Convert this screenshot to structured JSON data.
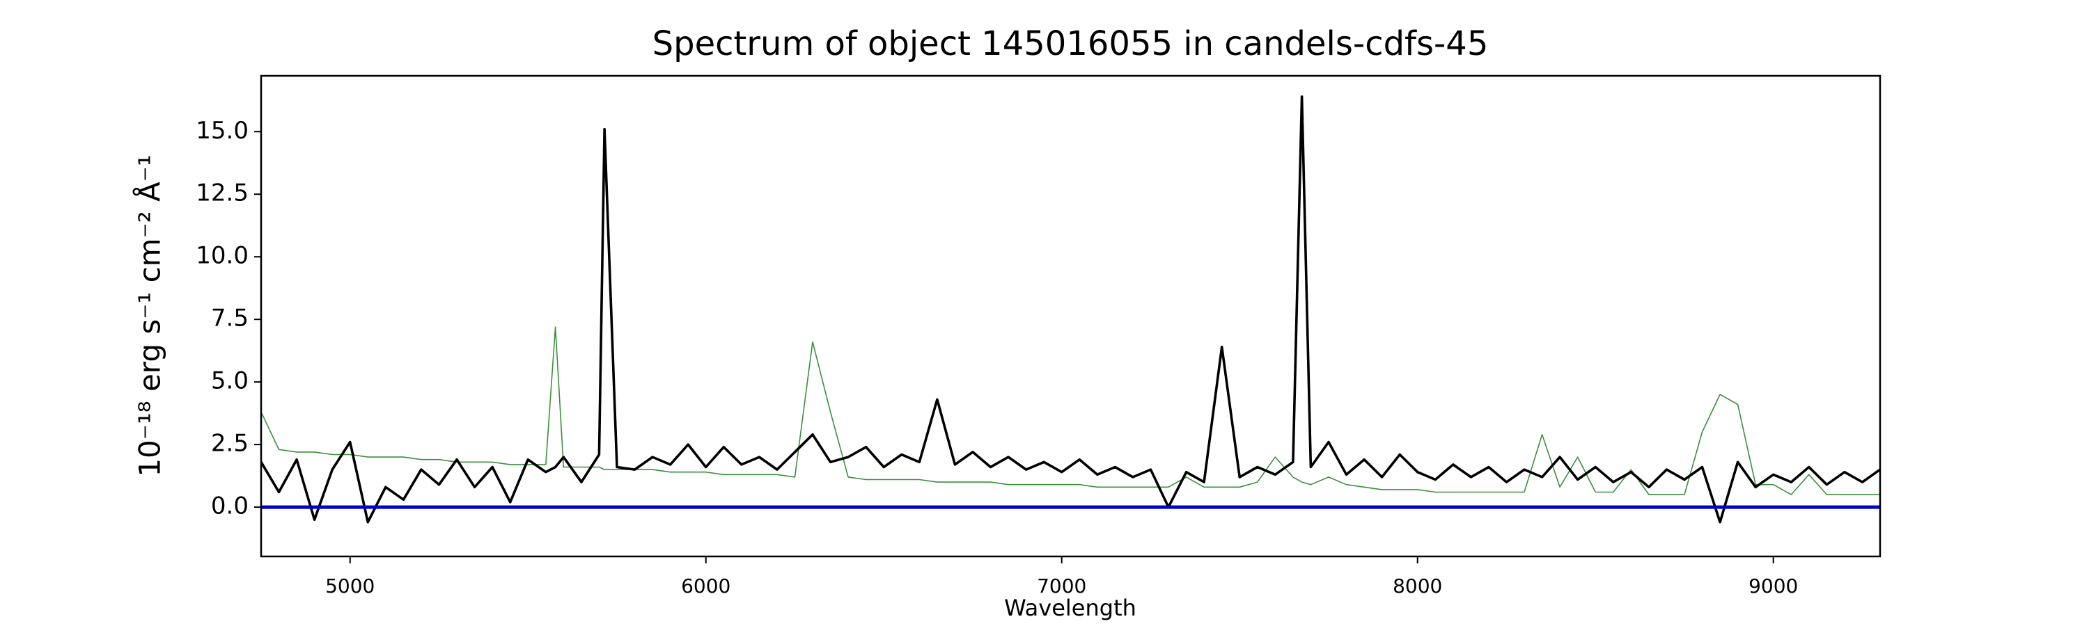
{
  "chart_data": {
    "type": "line",
    "title": "Spectrum of object 145016055 in candels-cdfs-45",
    "xlabel": "Wavelength",
    "ylabel": "10⁻¹⁸ erg s⁻¹ cm⁻² Å⁻¹",
    "x": [
      4750,
      4800,
      4850,
      4900,
      4950,
      5000,
      5050,
      5100,
      5150,
      5200,
      5250,
      5300,
      5350,
      5400,
      5450,
      5500,
      5550,
      5577,
      5600,
      5650,
      5700,
      5715,
      5750,
      5800,
      5850,
      5900,
      5950,
      6000,
      6050,
      6100,
      6150,
      6200,
      6250,
      6300,
      6350,
      6400,
      6450,
      6500,
      6550,
      6600,
      6650,
      6700,
      6750,
      6800,
      6850,
      6900,
      6950,
      7000,
      7050,
      7100,
      7150,
      7200,
      7250,
      7300,
      7350,
      7400,
      7450,
      7500,
      7550,
      7600,
      7650,
      7675,
      7700,
      7750,
      7800,
      7850,
      7900,
      7950,
      8000,
      8050,
      8100,
      8150,
      8200,
      8250,
      8300,
      8350,
      8400,
      8450,
      8500,
      8550,
      8600,
      8650,
      8700,
      8750,
      8800,
      8850,
      8900,
      8950,
      9000,
      9050,
      9100,
      9150,
      9200,
      9250,
      9300
    ],
    "series": [
      {
        "color": "#3c8f3c",
        "values": [
          3.8,
          2.3,
          2.2,
          2.2,
          2.1,
          2.1,
          2.0,
          2.0,
          2.0,
          1.9,
          1.9,
          1.8,
          1.8,
          1.8,
          1.7,
          1.7,
          1.7,
          7.2,
          1.6,
          1.6,
          1.6,
          1.5,
          1.5,
          1.5,
          1.5,
          1.4,
          1.4,
          1.4,
          1.3,
          1.3,
          1.3,
          1.3,
          1.2,
          6.6,
          3.8,
          1.2,
          1.1,
          1.1,
          1.1,
          1.1,
          1.0,
          1.0,
          1.0,
          1.0,
          0.9,
          0.9,
          0.9,
          0.9,
          0.9,
          0.8,
          0.8,
          0.8,
          0.8,
          0.8,
          1.2,
          0.8,
          0.8,
          0.8,
          1.0,
          2.0,
          1.2,
          1.0,
          0.9,
          1.2,
          0.9,
          0.8,
          0.7,
          0.7,
          0.7,
          0.6,
          0.6,
          0.6,
          0.6,
          0.6,
          0.6,
          2.9,
          0.8,
          2.0,
          0.6,
          0.6,
          1.5,
          0.5,
          0.5,
          0.5,
          3.0,
          4.5,
          4.1,
          0.9,
          0.9,
          0.5,
          1.3,
          0.5,
          0.5,
          0.5,
          0.5
        ]
      },
      {
        "color": "#000000",
        "values": [
          1.8,
          0.6,
          1.9,
          -0.5,
          1.5,
          2.6,
          -0.6,
          0.8,
          0.3,
          1.5,
          0.9,
          1.9,
          0.8,
          1.6,
          0.2,
          1.9,
          1.4,
          1.6,
          2.0,
          1.0,
          2.1,
          15.1,
          1.6,
          1.5,
          2.0,
          1.7,
          2.5,
          1.6,
          2.4,
          1.7,
          2.0,
          1.5,
          2.2,
          2.9,
          1.8,
          2.0,
          2.4,
          1.6,
          2.1,
          1.8,
          4.3,
          1.7,
          2.2,
          1.6,
          2.0,
          1.5,
          1.8,
          1.4,
          1.9,
          1.3,
          1.6,
          1.2,
          1.5,
          0.0,
          1.4,
          1.0,
          6.4,
          1.2,
          1.6,
          1.3,
          1.8,
          16.4,
          1.6,
          2.6,
          1.3,
          1.9,
          1.2,
          2.1,
          1.4,
          1.1,
          1.7,
          1.2,
          1.6,
          1.0,
          1.5,
          1.2,
          2.0,
          1.1,
          1.6,
          1.0,
          1.4,
          0.8,
          1.5,
          1.1,
          1.6,
          -0.6,
          1.8,
          0.8,
          1.3,
          1.0,
          1.6,
          0.9,
          1.4,
          1.0,
          1.5
        ]
      },
      {
        "color": "#0000cc",
        "x": [
          4750,
          9300
        ],
        "values": [
          0,
          0
        ]
      }
    ],
    "xlim": [
      4750,
      9300
    ],
    "ylim": [
      -1.97,
      17.23
    ],
    "xticks": [
      5000,
      6000,
      7000,
      8000,
      9000
    ],
    "yticks": [
      {
        "value": 0,
        "label": "0.0"
      },
      2.5,
      {
        "value": 5,
        "label": "5.0"
      },
      7.5,
      {
        "value": 10,
        "label": "10.0"
      },
      12.5,
      {
        "value": 15,
        "label": "15.0"
      }
    ]
  }
}
